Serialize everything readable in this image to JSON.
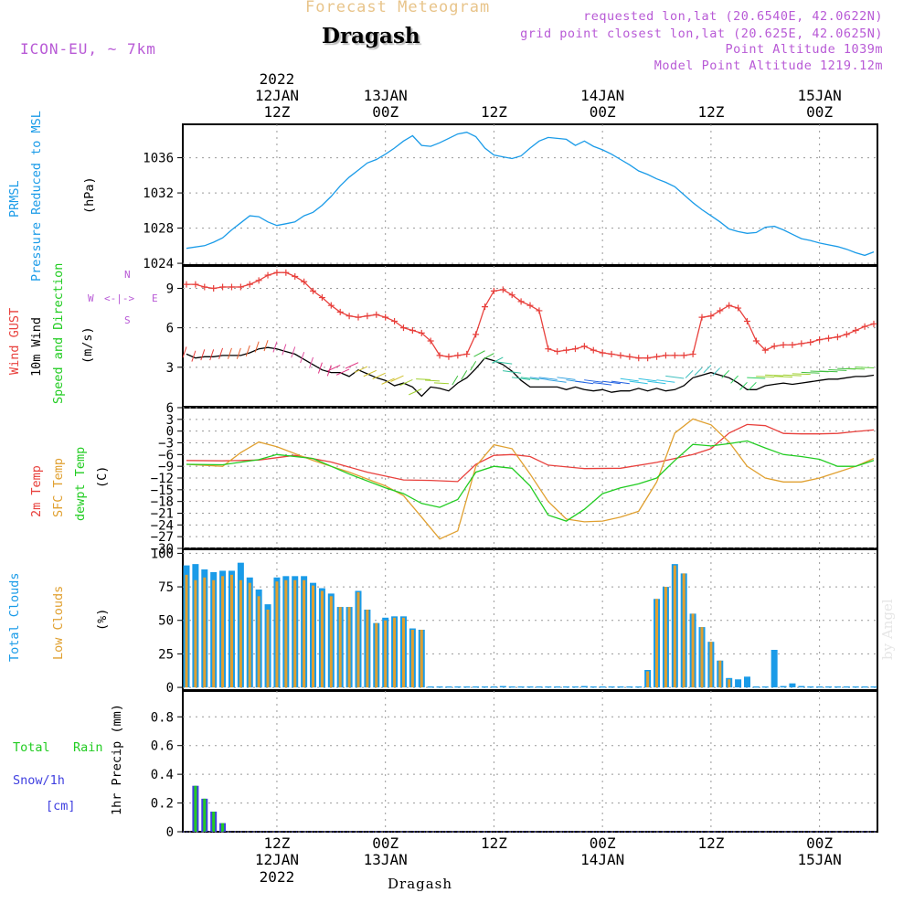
{
  "header": {
    "title": "Forecast Meteogram",
    "location": "Dragash",
    "model": "ICON-EU, ~ 7km",
    "requested": "requested lon,lat (20.6540E, 42.0622N)",
    "grid_point": "grid point closest lon,lat (20.625E, 42.0625N)",
    "point_altitude": "Point Altitude 1039m",
    "model_altitude": "Model Point Altitude 1219.12m"
  },
  "footer": {
    "location": "Dragash",
    "watermark": "by Angel"
  },
  "colors": {
    "pressure": "#1a9be8",
    "gust": "#e8403c",
    "wind": "#000000",
    "t2m": "#e8403c",
    "tsfc": "#e0a030",
    "dewpt": "#22cc22",
    "total_clouds": "#1a9be8",
    "low_clouds": "#e0a030",
    "rain": "#22cc22",
    "snow": "#4040e0",
    "accent": "#b85ad6",
    "grid": "#999999"
  },
  "chart_data": [
    {
      "type": "line",
      "panel": "pressure",
      "ylabel_lines": [
        "PRMSL",
        "Pressure Reduced to MSL",
        "(hPa)"
      ],
      "yticks": [
        1024,
        1028,
        1032,
        1036
      ],
      "ylim": [
        1023.8,
        1039.8
      ],
      "x_hours": [
        0,
        76
      ],
      "top_axis": {
        "year": "2022",
        "labels": [
          [
            "12JAN",
            "12Z"
          ],
          [
            "13JAN",
            "00Z"
          ],
          [
            "",
            "12Z"
          ],
          [
            "14JAN",
            "00Z"
          ],
          [
            "",
            "12Z"
          ],
          [
            "15JAN",
            "00Z"
          ]
        ]
      },
      "series": [
        {
          "key": "prmsl",
          "x": [
            0,
            2,
            3,
            4,
            5,
            6,
            7,
            8,
            9,
            10,
            11,
            12,
            13,
            14,
            15,
            16,
            17,
            18,
            19,
            20,
            21,
            22,
            23,
            24,
            25,
            26,
            27,
            28,
            29,
            30,
            31,
            32,
            33,
            34,
            35,
            36,
            37,
            38,
            39,
            40,
            41,
            42,
            43,
            44,
            45,
            46,
            47,
            48,
            49,
            50,
            51,
            52,
            53,
            54,
            55,
            56,
            57,
            58,
            59,
            60,
            61,
            62,
            63,
            64,
            65,
            66,
            67,
            68,
            69,
            70,
            71,
            72,
            73,
            74,
            75,
            76
          ],
          "values": [
            1025.7,
            1026.0,
            1026.4,
            1026.9,
            1027.8,
            1028.6,
            1029.4,
            1029.3,
            1028.7,
            1028.3,
            1028.5,
            1028.7,
            1029.4,
            1029.8,
            1030.6,
            1031.6,
            1032.8,
            1033.8,
            1034.6,
            1035.4,
            1035.8,
            1036.4,
            1037.1,
            1037.9,
            1038.5,
            1037.4,
            1037.3,
            1037.7,
            1038.2,
            1038.7,
            1038.9,
            1038.4,
            1037.1,
            1036.3,
            1036.1,
            1035.9,
            1036.2,
            1037.1,
            1037.9,
            1038.3,
            1038.2,
            1038.1,
            1037.4,
            1037.9,
            1037.3,
            1036.9,
            1036.4,
            1035.8,
            1035.2,
            1034.5,
            1034.1,
            1033.6,
            1033.2,
            1032.7,
            1031.8,
            1030.9,
            1030.1,
            1029.4,
            1028.7,
            1027.9,
            1027.6,
            1027.4,
            1027.5,
            1028.1,
            1028.2,
            1027.8,
            1027.3,
            1026.8,
            1026.6,
            1026.3,
            1026.1,
            1025.9,
            1025.6,
            1025.2,
            1024.9,
            1025.3
          ]
        }
      ]
    },
    {
      "type": "line",
      "panel": "wind",
      "ylabel_lines": [
        "Wind GUST",
        "10m Wind",
        "Speed and Direction",
        "(m/s)"
      ],
      "compass": [
        "N",
        "S",
        "W",
        "E",
        "<-|->"
      ],
      "yticks": [
        3,
        6,
        9
      ],
      "ylim": [
        0,
        10.7
      ],
      "series": [
        {
          "key": "gust",
          "x": [
            0,
            1,
            2,
            3,
            4,
            5,
            6,
            7,
            8,
            9,
            10,
            11,
            12,
            13,
            14,
            15,
            16,
            17,
            18,
            19,
            20,
            21,
            22,
            23,
            24,
            25,
            26,
            27,
            28,
            29,
            30,
            31,
            32,
            33,
            34,
            35,
            36,
            37,
            38,
            39,
            40,
            41,
            42,
            43,
            44,
            45,
            46,
            47,
            48,
            49,
            50,
            51,
            52,
            53,
            54,
            55,
            56,
            57,
            58,
            59,
            60,
            61,
            62,
            63,
            64,
            65,
            66,
            67,
            68,
            69,
            70,
            71,
            72,
            73,
            74,
            75,
            76
          ],
          "values": [
            9.3,
            9.3,
            9.1,
            9.0,
            9.1,
            9.1,
            9.1,
            9.3,
            9.6,
            10.0,
            10.2,
            10.2,
            9.9,
            9.5,
            8.8,
            8.3,
            7.7,
            7.2,
            6.9,
            6.8,
            6.9,
            7.0,
            6.8,
            6.5,
            6.0,
            5.8,
            5.6,
            5.0,
            3.9,
            3.8,
            3.9,
            4.0,
            5.5,
            7.6,
            8.8,
            8.9,
            8.5,
            8.0,
            7.7,
            7.3,
            4.4,
            4.2,
            4.3,
            4.4,
            4.6,
            4.3,
            4.1,
            4.0,
            3.9,
            3.8,
            3.7,
            3.7,
            3.8,
            3.9,
            3.9,
            3.9,
            4.0,
            6.8,
            6.9,
            7.3,
            7.7,
            7.5,
            6.5,
            5.0,
            4.3,
            4.6,
            4.7,
            4.7,
            4.8,
            4.9,
            5.1,
            5.2,
            5.3,
            5.5,
            5.8,
            6.1,
            6.3
          ]
        },
        {
          "key": "wind10m",
          "x": [
            0,
            1,
            2,
            3,
            4,
            5,
            6,
            7,
            8,
            9,
            10,
            11,
            12,
            13,
            14,
            15,
            16,
            17,
            18,
            19,
            20,
            21,
            22,
            23,
            24,
            25,
            26,
            27,
            28,
            29,
            30,
            31,
            32,
            33,
            34,
            35,
            36,
            37,
            38,
            39,
            40,
            41,
            42,
            43,
            44,
            45,
            46,
            47,
            48,
            49,
            50,
            51,
            52,
            53,
            54,
            55,
            56,
            57,
            58,
            59,
            60,
            61,
            62,
            63,
            64,
            65,
            66,
            67,
            68,
            69,
            70,
            71,
            72,
            73,
            74,
            75,
            76
          ],
          "values": [
            4.0,
            3.7,
            3.8,
            3.8,
            3.9,
            3.9,
            3.9,
            4.1,
            4.4,
            4.5,
            4.4,
            4.2,
            4.0,
            3.6,
            3.2,
            2.8,
            2.6,
            2.6,
            2.3,
            2.8,
            2.5,
            2.2,
            2.0,
            1.6,
            1.8,
            1.5,
            0.8,
            1.5,
            1.4,
            1.2,
            1.8,
            2.2,
            2.9,
            3.7,
            3.5,
            3.2,
            2.7,
            2.0,
            1.5,
            1.5,
            1.5,
            1.5,
            1.3,
            1.5,
            1.3,
            1.2,
            1.3,
            1.1,
            1.2,
            1.2,
            1.4,
            1.2,
            1.4,
            1.2,
            1.3,
            1.6,
            2.2,
            2.4,
            2.6,
            2.4,
            2.2,
            1.8,
            1.3,
            1.3,
            1.6,
            1.7,
            1.8,
            1.7,
            1.8,
            1.9,
            2.0,
            2.1,
            2.1,
            2.2,
            2.3,
            2.3,
            2.4
          ]
        }
      ]
    },
    {
      "type": "line",
      "panel": "temperature",
      "ylabel_lines": [
        "2m Temp",
        "SFC Temp",
        "dewpt Temp",
        "(C)"
      ],
      "yticks": [
        -30,
        -27,
        -24,
        -21,
        -18,
        -15,
        -12,
        -9,
        -6,
        -3,
        0,
        3,
        6
      ],
      "ylim": [
        -30,
        6
      ],
      "series": [
        {
          "key": "t2m",
          "x": [
            0,
            4,
            8,
            12,
            16,
            20,
            24,
            27,
            30,
            32,
            34,
            36,
            38,
            40,
            44,
            48,
            52,
            54,
            56,
            58,
            60,
            62,
            64,
            66,
            68,
            70,
            72,
            74,
            76
          ],
          "values": [
            -7.5,
            -7.6,
            -7.4,
            -6.2,
            -7.9,
            -10.5,
            -12.5,
            -12.6,
            -12.9,
            -8.5,
            -6.2,
            -6.0,
            -6.5,
            -8.7,
            -9.6,
            -9.5,
            -8.0,
            -7.0,
            -6.0,
            -4.5,
            -0.5,
            1.7,
            1.4,
            -0.6,
            -0.7,
            -0.7,
            -0.6,
            -0.1,
            0.3
          ]
        },
        {
          "key": "tsfc",
          "x": [
            0,
            4,
            6,
            8,
            10,
            14,
            18,
            22,
            24,
            26,
            28,
            30,
            32,
            34,
            36,
            38,
            40,
            42,
            44,
            46,
            48,
            50,
            52,
            54,
            56,
            58,
            60,
            62,
            64,
            66,
            68,
            70,
            72,
            74,
            76
          ],
          "values": [
            -8.5,
            -9.0,
            -5.5,
            -2.8,
            -4.0,
            -7.5,
            -10.5,
            -14.0,
            -16.5,
            -22.0,
            -27.6,
            -25.5,
            -9.0,
            -3.5,
            -4.5,
            -11.0,
            -18.0,
            -22.5,
            -23.2,
            -23.0,
            -22.0,
            -20.5,
            -13.0,
            -0.5,
            3.1,
            1.6,
            -2.8,
            -9.0,
            -12.0,
            -13.0,
            -13.0,
            -12.0,
            -10.5,
            -9.0,
            -7.0
          ]
        },
        {
          "key": "dewpt",
          "x": [
            0,
            4,
            8,
            10,
            14,
            18,
            22,
            24,
            26,
            28,
            30,
            32,
            34,
            36,
            38,
            40,
            42,
            44,
            46,
            48,
            50,
            52,
            54,
            56,
            58,
            60,
            62,
            64,
            66,
            68,
            70,
            72,
            74,
            76
          ],
          "values": [
            -8.5,
            -8.6,
            -7.3,
            -6.0,
            -7.0,
            -11.0,
            -14.5,
            -16.0,
            -18.5,
            -19.5,
            -17.5,
            -10.5,
            -9.0,
            -9.5,
            -14.0,
            -21.5,
            -23.0,
            -20.0,
            -16.0,
            -14.5,
            -13.5,
            -12.0,
            -7.5,
            -3.4,
            -3.8,
            -3.2,
            -2.5,
            -4.3,
            -6.0,
            -6.5,
            -7.2,
            -9.0,
            -9.0,
            -7.5
          ]
        }
      ]
    },
    {
      "type": "bar",
      "panel": "clouds",
      "ylabel_lines": [
        "Total Clouds",
        "Low Clouds",
        "(%)"
      ],
      "yticks": [
        0,
        25,
        50,
        75,
        100
      ],
      "ylim": [
        -2,
        103
      ],
      "x": [
        0,
        1,
        2,
        3,
        4,
        5,
        6,
        7,
        8,
        9,
        10,
        11,
        12,
        13,
        14,
        15,
        16,
        17,
        18,
        19,
        20,
        21,
        22,
        23,
        24,
        25,
        26,
        27,
        28,
        29,
        30,
        31,
        32,
        33,
        34,
        35,
        36,
        37,
        38,
        39,
        40,
        41,
        42,
        43,
        44,
        45,
        46,
        47,
        48,
        49,
        50,
        51,
        52,
        53,
        54,
        55,
        56,
        57,
        58,
        59,
        60,
        61,
        62,
        63,
        64,
        65,
        66,
        67,
        68,
        69,
        70,
        71,
        72,
        73,
        74,
        75,
        76
      ],
      "series": [
        {
          "name": "Total Clouds",
          "key": "total",
          "values": [
            91,
            92,
            88,
            86,
            87,
            87,
            93,
            82,
            73,
            62,
            82,
            83,
            83,
            83,
            78,
            74,
            70,
            60,
            60,
            72,
            58,
            48,
            52,
            53,
            53,
            44,
            43,
            0,
            0,
            0,
            0,
            0,
            0,
            0,
            0,
            1,
            0,
            0,
            0,
            0,
            0,
            0,
            0,
            0,
            1,
            0,
            0,
            0,
            0,
            0,
            0,
            13,
            66,
            75,
            92,
            85,
            55,
            45,
            34,
            20,
            7,
            6,
            8,
            0,
            0,
            28,
            1,
            3,
            1,
            0,
            0,
            0,
            0,
            0,
            0,
            0,
            0
          ]
        },
        {
          "name": "Low Clouds",
          "key": "low",
          "values": [
            84,
            80,
            82,
            80,
            83,
            84,
            80,
            78,
            68,
            58,
            79,
            80,
            80,
            80,
            76,
            72,
            68,
            60,
            60,
            71,
            58,
            48,
            50,
            52,
            52,
            43,
            43,
            0,
            0,
            0,
            0,
            0,
            0,
            0,
            0,
            0,
            0,
            0,
            0,
            0,
            0,
            0,
            0,
            0,
            0,
            0,
            0,
            0,
            0,
            0,
            0,
            12,
            66,
            75,
            91,
            85,
            55,
            45,
            34,
            20,
            6,
            0,
            0,
            0,
            0,
            0,
            0,
            0,
            0,
            0,
            0,
            0,
            0,
            0,
            0,
            0,
            0
          ]
        }
      ]
    },
    {
      "type": "bar",
      "panel": "precip",
      "ylabel_lines": [
        "1hr Precip (mm)"
      ],
      "side_labels": [
        "Total",
        "Rain",
        "Snow/1h",
        "[cm]"
      ],
      "yticks": [
        0,
        0.2,
        0.4,
        0.6,
        0.8
      ],
      "ytick_labels": [
        "0",
        "0.2",
        "0.4",
        "0.6",
        "0.8"
      ],
      "ylim": [
        0,
        0.98
      ],
      "x": [
        1,
        2,
        3,
        4
      ],
      "series": [
        {
          "name": "Total",
          "key": "total",
          "values": [
            0.32,
            0.23,
            0.14,
            0.06
          ]
        },
        {
          "name": "Rain",
          "key": "rain",
          "values": [
            0.32,
            0.23,
            0.14,
            0.06
          ]
        }
      ],
      "bottom_axis": {
        "labels": [
          [
            "12Z",
            "12JAN"
          ],
          [
            "00Z",
            "13JAN"
          ],
          [
            "12Z",
            ""
          ],
          [
            "00Z",
            "14JAN"
          ],
          [
            "12Z",
            ""
          ],
          [
            "00Z",
            "15JAN"
          ]
        ],
        "year": "2022"
      }
    }
  ]
}
